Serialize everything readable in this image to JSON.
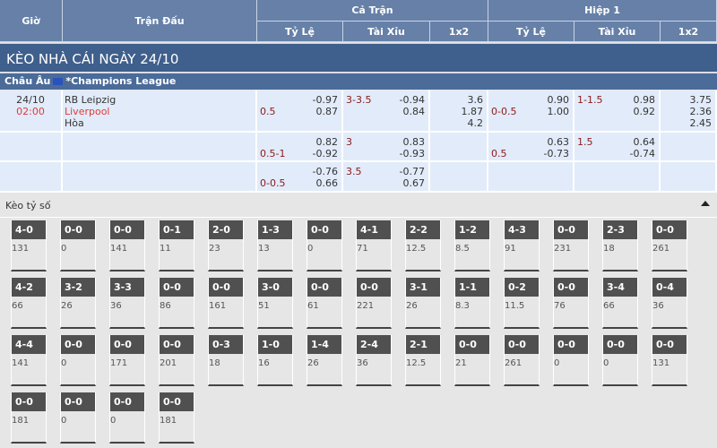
{
  "header": {
    "gio": "Giờ",
    "tran_dau": "Trận Đấu",
    "ca_tran": "Cả Trận",
    "hiep1": "Hiệp 1",
    "ty_le": "Tỷ Lệ",
    "tai_xiu": "Tài Xỉu",
    "x12": "1x2"
  },
  "banner": "KÈO NHÀ CÁI NGÀY 24/10",
  "league": {
    "region": "Châu Âu",
    "flag_icon": "eu-flag-icon",
    "name": "*Champions League"
  },
  "match": {
    "date": "24/10",
    "time": "02:00",
    "home": "RB Leipzig",
    "away": "Liverpool",
    "draw": "Hòa"
  },
  "rows": [
    {
      "ft_hdp": {
        "line": "0.5",
        "on": 2,
        "v": [
          "-0.97",
          "0.87"
        ]
      },
      "ft_ou": {
        "line": "3-3.5",
        "on": 1,
        "v": [
          "-0.94",
          "0.84"
        ]
      },
      "ft_1x2": [
        "3.6",
        "1.87",
        "4.2"
      ],
      "h1_hdp": {
        "line": "0-0.5",
        "on": 2,
        "v": [
          "0.90",
          "1.00"
        ]
      },
      "h1_ou": {
        "line": "1-1.5",
        "on": 1,
        "v": [
          "0.98",
          "0.92"
        ]
      },
      "h1_1x2": [
        "3.75",
        "2.36",
        "2.45"
      ]
    },
    {
      "ft_hdp": {
        "line": "0.5-1",
        "on": 2,
        "v": [
          "0.82",
          "-0.92"
        ]
      },
      "ft_ou": {
        "line": "3",
        "on": 1,
        "v": [
          "0.83",
          "-0.93"
        ]
      },
      "ft_1x2": [],
      "h1_hdp": {
        "line": "0.5",
        "on": 2,
        "v": [
          "0.63",
          "-0.73"
        ]
      },
      "h1_ou": {
        "line": "1.5",
        "on": 1,
        "v": [
          "0.64",
          "-0.74"
        ]
      },
      "h1_1x2": []
    },
    {
      "ft_hdp": {
        "line": "0-0.5",
        "on": 2,
        "v": [
          "-0.76",
          "0.66"
        ]
      },
      "ft_ou": {
        "line": "3.5",
        "on": 1,
        "v": [
          "-0.77",
          "0.67"
        ]
      },
      "ft_1x2": [],
      "h1_hdp": null,
      "h1_ou": null,
      "h1_1x2": []
    }
  ],
  "correct_score": {
    "title": "Kèo tỷ số",
    "collapse_icon": "caret-up-icon",
    "items": [
      [
        "4-0",
        "131"
      ],
      [
        "0-0",
        "0"
      ],
      [
        "0-0",
        "141"
      ],
      [
        "0-1",
        "11"
      ],
      [
        "2-0",
        "23"
      ],
      [
        "1-3",
        "13"
      ],
      [
        "0-0",
        "0"
      ],
      [
        "4-1",
        "71"
      ],
      [
        "2-2",
        "12.5"
      ],
      [
        "1-2",
        "8.5"
      ],
      [
        "4-3",
        "91"
      ],
      [
        "0-0",
        "231"
      ],
      [
        "2-3",
        "18"
      ],
      [
        "0-0",
        "261"
      ],
      [
        "4-2",
        "66"
      ],
      [
        "3-2",
        "26"
      ],
      [
        "3-3",
        "36"
      ],
      [
        "0-0",
        "86"
      ],
      [
        "0-0",
        "161"
      ],
      [
        "3-0",
        "51"
      ],
      [
        "0-0",
        "61"
      ],
      [
        "0-0",
        "221"
      ],
      [
        "3-1",
        "26"
      ],
      [
        "1-1",
        "8.3"
      ],
      [
        "0-2",
        "11.5"
      ],
      [
        "0-0",
        "76"
      ],
      [
        "3-4",
        "66"
      ],
      [
        "0-4",
        "36"
      ],
      [
        "4-4",
        "141"
      ],
      [
        "0-0",
        "0"
      ],
      [
        "0-0",
        "171"
      ],
      [
        "0-0",
        "201"
      ],
      [
        "0-3",
        "18"
      ],
      [
        "1-0",
        "16"
      ],
      [
        "1-4",
        "26"
      ],
      [
        "2-4",
        "36"
      ],
      [
        "2-1",
        "12.5"
      ],
      [
        "0-0",
        "21"
      ],
      [
        "0-0",
        "261"
      ],
      [
        "0-0",
        "0"
      ],
      [
        "0-0",
        "0"
      ],
      [
        "0-0",
        "131"
      ],
      [
        "0-0",
        "181"
      ],
      [
        "0-0",
        "0"
      ],
      [
        "0-0",
        "0"
      ],
      [
        "0-0",
        "181"
      ]
    ]
  }
}
